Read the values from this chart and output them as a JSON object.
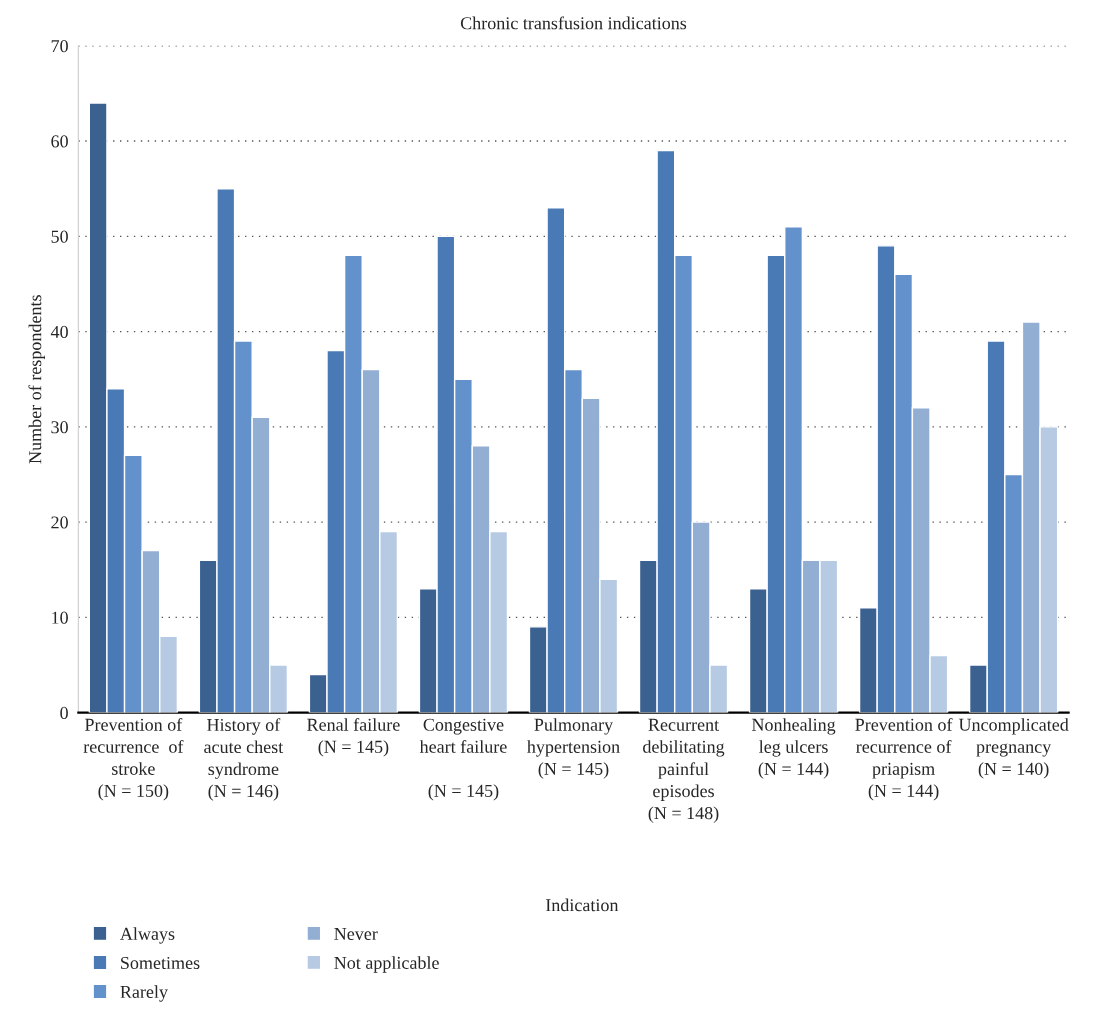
{
  "chart_data": {
    "type": "bar",
    "title": "Chronic transfusion indications",
    "xlabel": "Indication",
    "ylabel": "Number of respondents",
    "categories": [
      "Prevention of\nrecurrence  of\nstroke\n(N = 150)",
      "History of\nacute chest\nsyndrome\n(N = 146)",
      "Renal failure\n(N = 145)",
      "Congestive\nheart failure\n\n(N = 145)",
      "Pulmonary\nhypertension\n(N = 145)",
      "Recurrent\ndebilitating\npainful\nepisodes\n(N = 148)",
      "Nonhealing\nleg ulcers\n(N = 144)",
      "Prevention of\nrecurrence of\npriapism\n(N = 144)",
      "Uncomplicated\npregnancy\n(N = 140)"
    ],
    "series": [
      {
        "name": "Always",
        "color": "#3a6190",
        "values": [
          64,
          16,
          4,
          13,
          9,
          16,
          13,
          11,
          5
        ]
      },
      {
        "name": "Sometimes",
        "color": "#4a7ab5",
        "values": [
          34,
          55,
          38,
          50,
          53,
          59,
          48,
          49,
          39
        ]
      },
      {
        "name": "Rarely",
        "color": "#6391cc",
        "values": [
          27,
          39,
          48,
          35,
          36,
          48,
          51,
          46,
          25
        ]
      },
      {
        "name": "Never",
        "color": "#93aed3",
        "values": [
          17,
          31,
          36,
          28,
          33,
          20,
          16,
          32,
          41
        ]
      },
      {
        "name": "Not applicable",
        "color": "#b7cae3",
        "values": [
          8,
          5,
          19,
          19,
          14,
          5,
          16,
          6,
          30
        ]
      }
    ],
    "ylim": [
      0,
      70
    ],
    "yticks": [
      0,
      10,
      20,
      30,
      40,
      50,
      60,
      70
    ],
    "grid": "y",
    "legend": "bottom left"
  }
}
